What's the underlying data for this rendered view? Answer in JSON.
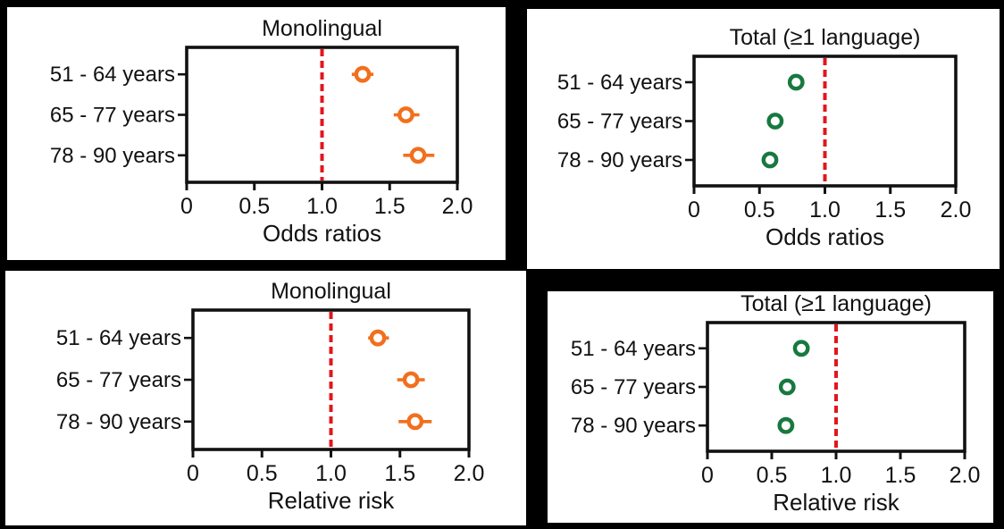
{
  "figure": {
    "background_color": "#000000",
    "panel_color": "#ffffff",
    "text_color": "#111111",
    "refline_color": "#e2161c",
    "series_colors": {
      "orange": "#f26f1d",
      "green": "#17793f"
    }
  },
  "chart_data": [
    {
      "type": "scatter",
      "title": "Monolingual",
      "xlabel": "Odds ratios",
      "categories": [
        "51 - 64 years",
        "65 - 77 years",
        "78 - 90 years"
      ],
      "values": [
        1.3,
        1.62,
        1.71
      ],
      "ci_low": [
        1.22,
        1.53,
        1.6
      ],
      "ci_high": [
        1.38,
        1.72,
        1.83
      ],
      "xlim": [
        0,
        2
      ],
      "xticks": [
        0,
        0.5,
        1.0,
        1.5,
        2.0
      ],
      "xtick_labels": [
        "0",
        "0.5",
        "1.0",
        "1.5",
        "2.0"
      ],
      "refline": 1.0,
      "grid": false,
      "legend": "none",
      "marker": "open-circle",
      "color_key": "orange"
    },
    {
      "type": "scatter",
      "title": "Total (≥1 language)",
      "xlabel": "Odds ratios",
      "categories": [
        "51 - 64 years",
        "65 - 77 years",
        "78 - 90 years"
      ],
      "values": [
        0.78,
        0.62,
        0.58
      ],
      "ci_low": [
        0.72,
        0.57,
        0.53
      ],
      "ci_high": [
        0.84,
        0.67,
        0.63
      ],
      "xlim": [
        0,
        2
      ],
      "xticks": [
        0,
        0.5,
        1.0,
        1.5,
        2.0
      ],
      "xtick_labels": [
        "0",
        "0.5",
        "1.0",
        "1.5",
        "2.0"
      ],
      "refline": 1.0,
      "grid": false,
      "legend": "none",
      "marker": "open-circle",
      "color_key": "green"
    },
    {
      "type": "scatter",
      "title": "Monolingual",
      "xlabel": "Relative risk",
      "categories": [
        "51 - 64 years",
        "65 - 77 years",
        "78 - 90 years"
      ],
      "values": [
        1.34,
        1.58,
        1.61
      ],
      "ci_low": [
        1.27,
        1.48,
        1.49
      ],
      "ci_high": [
        1.42,
        1.68,
        1.73
      ],
      "xlim": [
        0,
        2
      ],
      "xticks": [
        0,
        0.5,
        1.0,
        1.5,
        2.0
      ],
      "xtick_labels": [
        "0",
        "0.5",
        "1.0",
        "1.5",
        "2.0"
      ],
      "refline": 1.0,
      "grid": false,
      "legend": "none",
      "marker": "open-circle",
      "color_key": "orange"
    },
    {
      "type": "scatter",
      "title": "Total (≥1 language)",
      "xlabel": "Relative risk",
      "categories": [
        "51 - 64 years",
        "65 - 77 years",
        "78 - 90 years"
      ],
      "values": [
        0.73,
        0.62,
        0.61
      ],
      "ci_low": [
        0.69,
        0.58,
        0.56
      ],
      "ci_high": [
        0.78,
        0.67,
        0.66
      ],
      "xlim": [
        0,
        2
      ],
      "xticks": [
        0,
        0.5,
        1.0,
        1.5,
        2.0
      ],
      "xtick_labels": [
        "0",
        "0.5",
        "1.0",
        "1.5",
        "2.0"
      ],
      "refline": 1.0,
      "grid": false,
      "legend": "none",
      "marker": "open-circle",
      "color_key": "green"
    }
  ]
}
